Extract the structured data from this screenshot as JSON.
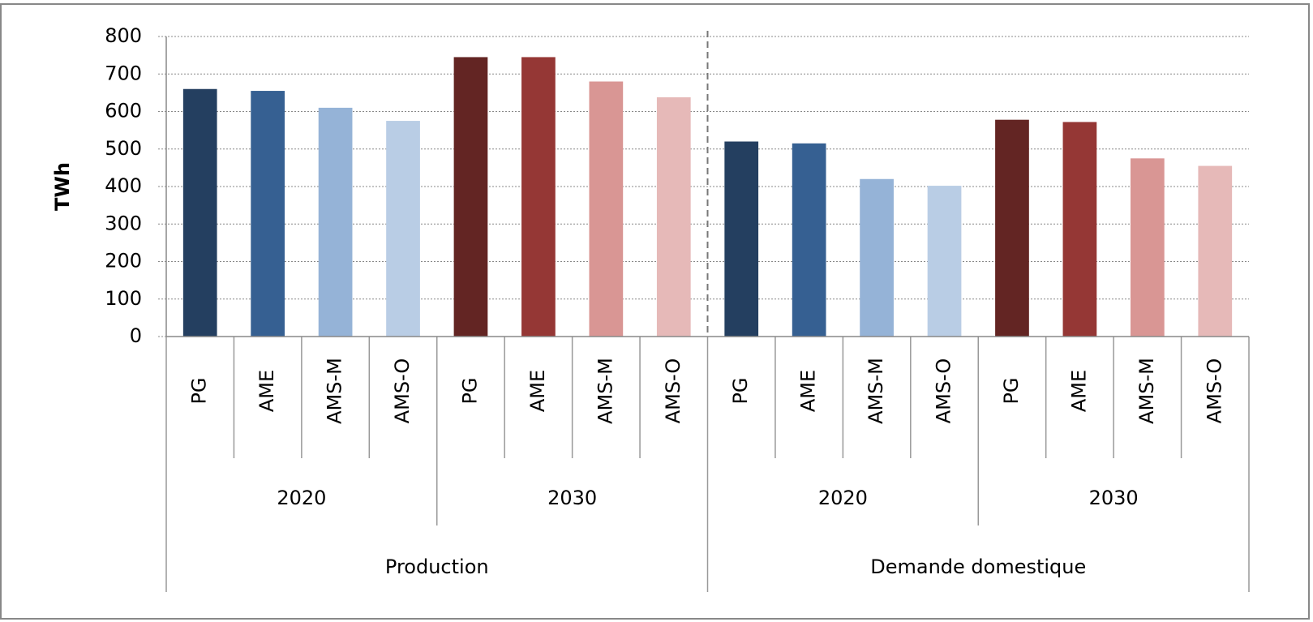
{
  "chart_data": {
    "type": "bar",
    "y_label": "TWh",
    "categories": [
      "PG",
      "AME",
      "AMS-M",
      "AMS-O",
      "PG",
      "AME",
      "AMS-M",
      "AMS-O",
      "PG",
      "AME",
      "AMS-M",
      "AMS-O",
      "PG",
      "AME",
      "AMS-M",
      "AMS-O"
    ],
    "year_groups": [
      "2020",
      "2030",
      "2020",
      "2030"
    ],
    "sections": [
      "Production",
      "Demande domestique"
    ],
    "values": [
      660,
      655,
      610,
      575,
      745,
      745,
      680,
      638,
      520,
      515,
      420,
      402,
      578,
      572,
      475,
      455
    ],
    "colors": [
      "#243f60",
      "#366092",
      "#95b3d7",
      "#b9cde5",
      "#632523",
      "#953735",
      "#d99694",
      "#e6b9b8",
      "#243f60",
      "#366092",
      "#95b3d7",
      "#b9cde5",
      "#632523",
      "#953735",
      "#d99694",
      "#e6b9b8"
    ],
    "ylim": [
      0,
      800
    ],
    "yticks": [
      0,
      100,
      200,
      300,
      400,
      500,
      600,
      700,
      800
    ],
    "grid": true
  }
}
